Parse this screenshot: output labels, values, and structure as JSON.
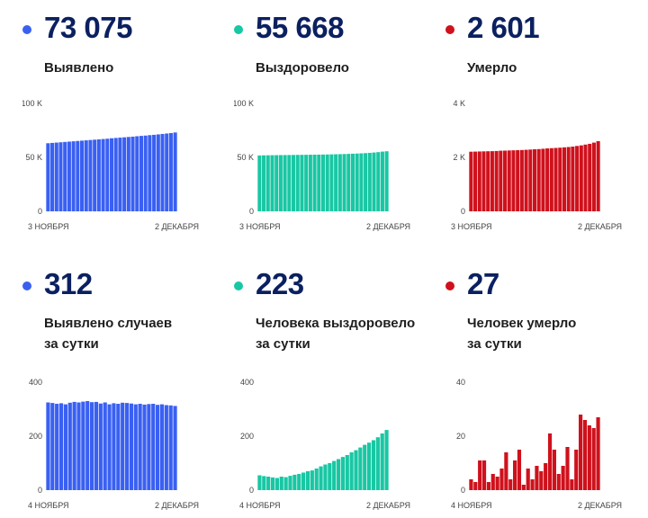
{
  "colors": {
    "blue": "#3a60f2",
    "teal": "#19c7a4",
    "red": "#cf111c",
    "number": "#0b2060"
  },
  "panels": [
    {
      "value": "73 075",
      "label": [
        "Выявлено"
      ],
      "color": "#3a60f2"
    },
    {
      "value": "55 668",
      "label": [
        "Выздоровело"
      ],
      "color": "#19c7a4"
    },
    {
      "value": "2 601",
      "label": [
        "Умерло"
      ],
      "color": "#cf111c"
    },
    {
      "value": "312",
      "label": [
        "Выявлено случаев",
        "за сутки"
      ],
      "color": "#3a60f2"
    },
    {
      "value": "223",
      "label": [
        "Человека выздоровело",
        "за сутки"
      ],
      "color": "#19c7a4"
    },
    {
      "value": "27",
      "label": [
        "Человек умерло",
        "за сутки"
      ],
      "color": "#cf111c"
    }
  ],
  "chart_data": [
    {
      "type": "bar",
      "color": "#3a60f2",
      "ylim": [
        0,
        100000
      ],
      "yticks": [
        "0",
        "50 K",
        "100 K"
      ],
      "x_start_label": "3 НОЯБРЯ",
      "x_end_label": "2 ДЕКАБРЯ",
      "values": [
        63100,
        63400,
        63700,
        64000,
        64300,
        64600,
        64900,
        65200,
        65500,
        65800,
        66100,
        66400,
        66700,
        67000,
        67300,
        67700,
        68000,
        68300,
        68600,
        68900,
        69200,
        69600,
        69900,
        70200,
        70600,
        70900,
        71300,
        71700,
        72100,
        72500,
        73075
      ]
    },
    {
      "type": "bar",
      "color": "#19c7a4",
      "ylim": [
        0,
        100000
      ],
      "yticks": [
        "0",
        "50 K",
        "100 K"
      ],
      "x_start_label": "3 НОЯБРЯ",
      "x_end_label": "2 ДЕКАБРЯ",
      "values": [
        51800,
        51900,
        51950,
        52000,
        52050,
        52100,
        52150,
        52200,
        52250,
        52300,
        52350,
        52400,
        52450,
        52500,
        52550,
        52600,
        52700,
        52800,
        52900,
        53000,
        53100,
        53250,
        53400,
        53550,
        53750,
        53950,
        54200,
        54500,
        54850,
        55350,
        55668
      ]
    },
    {
      "type": "bar",
      "color": "#cf111c",
      "ylim": [
        0,
        4000
      ],
      "yticks": [
        "0",
        "2 K",
        "4 K"
      ],
      "x_start_label": "3 НОЯБРЯ",
      "x_end_label": "2 ДЕКАБРЯ",
      "values": [
        2210,
        2214,
        2219,
        2223,
        2227,
        2230,
        2236,
        2247,
        2250,
        2256,
        2262,
        2267,
        2272,
        2281,
        2290,
        2300,
        2307,
        2319,
        2333,
        2341,
        2350,
        2360,
        2372,
        2384,
        2399,
        2423,
        2444,
        2474,
        2502,
        2547,
        2601
      ]
    },
    {
      "type": "bar",
      "color": "#3a60f2",
      "ylim": [
        0,
        400
      ],
      "yticks": [
        "0",
        "200",
        "400"
      ],
      "x_start_label": "4 НОЯБРЯ",
      "x_end_label": "2 ДЕКАБРЯ",
      "values": [
        325,
        323,
        320,
        322,
        318,
        324,
        327,
        325,
        328,
        330,
        326,
        327,
        321,
        325,
        318,
        322,
        320,
        324,
        323,
        321,
        318,
        320,
        317,
        319,
        320,
        316,
        318,
        315,
        314,
        312
      ]
    },
    {
      "type": "bar",
      "color": "#19c7a4",
      "ylim": [
        0,
        400
      ],
      "yticks": [
        "0",
        "200",
        "400"
      ],
      "x_start_label": "4 НОЯБРЯ",
      "x_end_label": "2 ДЕКАБРЯ",
      "values": [
        55,
        52,
        50,
        47,
        45,
        50,
        48,
        53,
        57,
        60,
        65,
        70,
        73,
        80,
        88,
        95,
        100,
        108,
        115,
        123,
        130,
        140,
        148,
        158,
        168,
        176,
        185,
        196,
        210,
        223
      ]
    },
    {
      "type": "bar",
      "color": "#cf111c",
      "ylim": [
        0,
        40
      ],
      "yticks": [
        "0",
        "20",
        "40"
      ],
      "x_start_label": "4 НОЯБРЯ",
      "x_end_label": "2 ДЕКАБРЯ",
      "values": [
        4,
        3,
        11,
        11,
        3,
        6,
        5,
        8,
        14,
        4,
        11,
        15,
        2,
        8,
        4,
        9,
        7,
        10,
        21,
        15,
        6,
        9,
        16,
        4,
        15,
        28,
        26,
        24,
        23,
        27
      ]
    }
  ]
}
